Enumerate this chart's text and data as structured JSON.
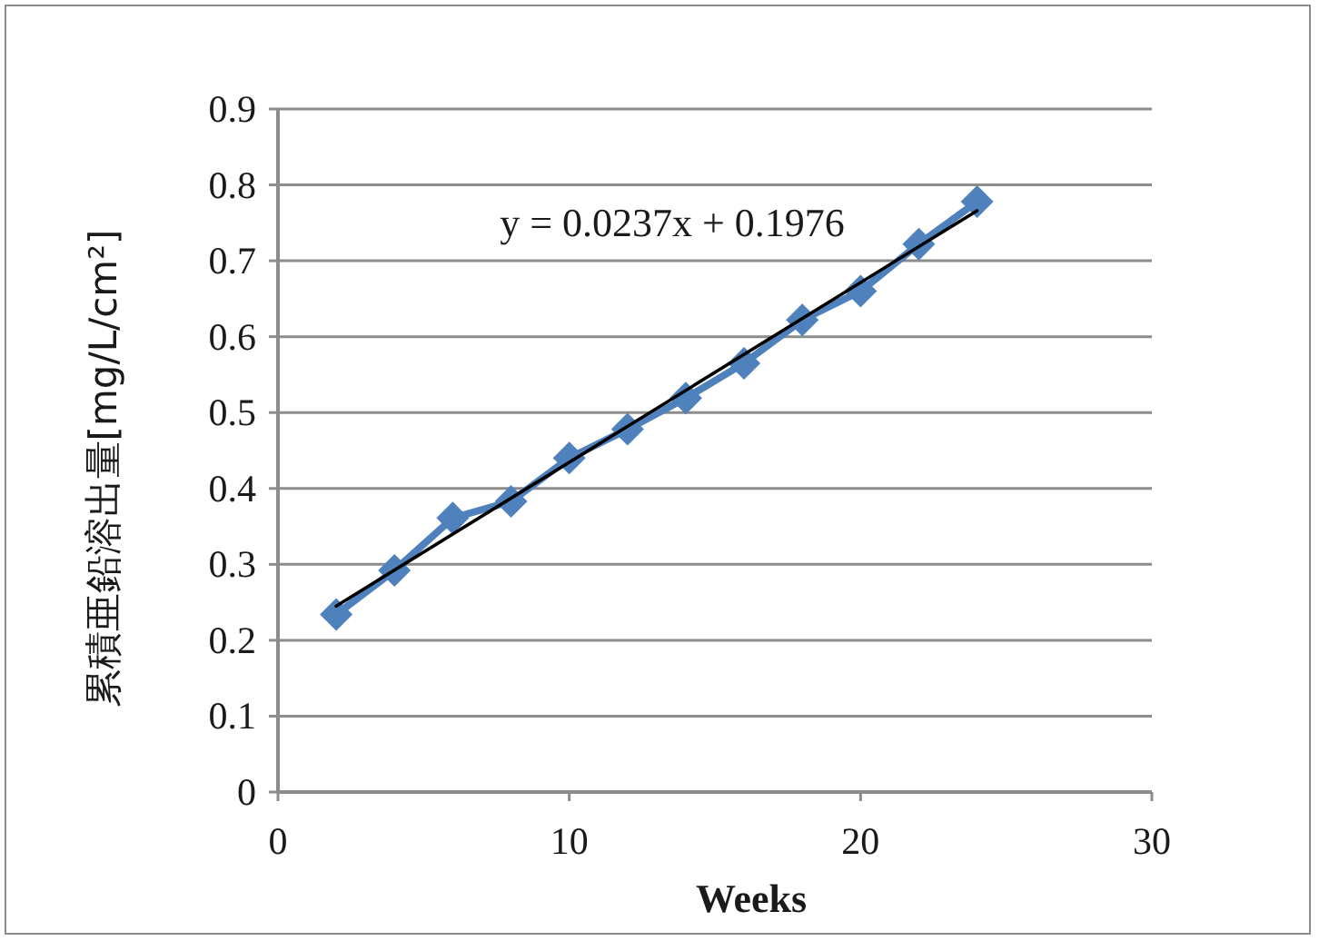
{
  "chart_data": {
    "type": "line",
    "xlabel": "Weeks",
    "ylabel": "累積亜鉛溶出量[mg/L/cm²]",
    "annotations": [
      "y = 0.0237x + 0.1976"
    ],
    "xlim": [
      0,
      30
    ],
    "xticks": [
      0,
      10,
      20,
      30
    ],
    "ylim": [
      0,
      0.9
    ],
    "yticks": [
      0,
      0.1,
      0.2,
      0.3,
      0.4,
      0.5,
      0.6,
      0.7,
      0.8,
      0.9
    ],
    "grid": "y",
    "line_style": "solid",
    "series": [
      {
        "color": "#4f81bd",
        "marker": "diamond",
        "x": [
          2,
          4,
          6,
          8,
          10,
          12,
          14,
          16,
          18,
          20,
          22,
          24
        ],
        "values": [
          0.234,
          0.292,
          0.361,
          0.383,
          0.44,
          0.478,
          0.519,
          0.565,
          0.622,
          0.66,
          0.722,
          0.778
        ]
      },
      {
        "color": "#000000",
        "marker": "none",
        "x": [
          2,
          24
        ],
        "values": [
          0.245,
          0.766
        ]
      }
    ]
  }
}
